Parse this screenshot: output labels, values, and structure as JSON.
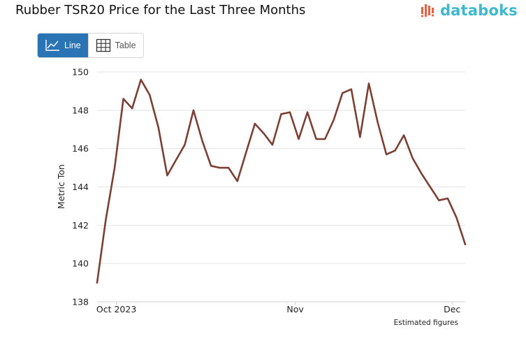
{
  "header": {
    "title": "Rubber TSR20 Price for the Last Three Months",
    "brand": "databoks"
  },
  "toggle": {
    "line_label": "Line",
    "table_label": "Table",
    "active": "line"
  },
  "colors": {
    "line": "#7b3f33",
    "grid": "#e3e3e3",
    "toggle_active": "#2a73b5",
    "brand": "#3eb8cc",
    "brand_icon": "#e8603c"
  },
  "chart_data": {
    "type": "line",
    "title": "Rubber TSR20 Price for the Last Three Months",
    "xlabel": "",
    "ylabel": "Metric Ton",
    "ylim": [
      138,
      150
    ],
    "yticks": [
      138,
      140,
      142,
      144,
      146,
      148,
      150
    ],
    "grid": true,
    "note": "Estimated figures",
    "x_ticks": [
      {
        "label": "Oct 2023",
        "index": 2.2
      },
      {
        "label": "Nov",
        "index": 22.6
      },
      {
        "label": "Dec",
        "index": 40.5
      }
    ],
    "series": [
      {
        "name": "Rubber TSR20",
        "values": [
          139.0,
          142.3,
          145.0,
          148.6,
          148.1,
          149.6,
          148.8,
          147.1,
          144.6,
          145.4,
          146.2,
          148.0,
          146.4,
          145.1,
          145.0,
          145.0,
          144.3,
          145.8,
          147.3,
          146.8,
          146.2,
          147.8,
          147.9,
          146.5,
          147.9,
          146.5,
          146.5,
          147.5,
          148.9,
          149.1,
          146.6,
          149.4,
          147.4,
          145.7,
          145.9,
          146.7,
          145.5,
          144.7,
          144.0,
          143.3,
          143.4,
          142.4,
          141.0
        ]
      }
    ]
  }
}
